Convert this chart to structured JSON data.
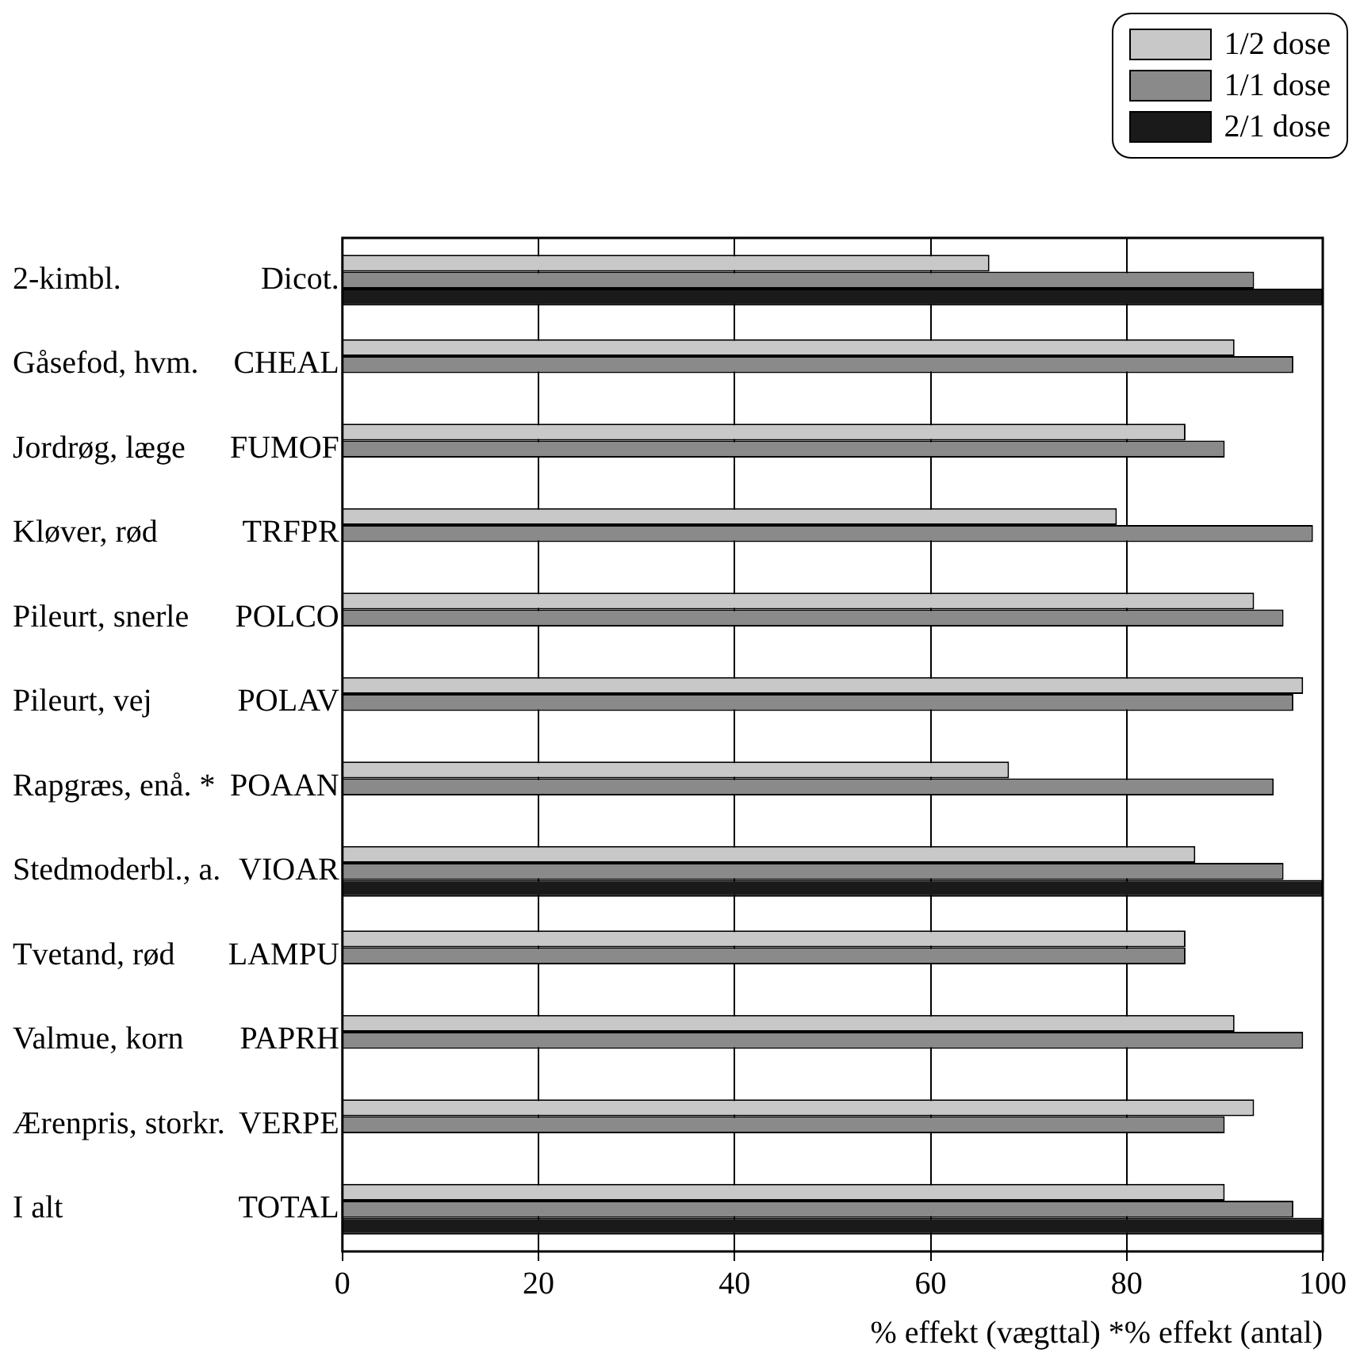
{
  "chart_data": {
    "type": "bar",
    "orientation": "horizontal",
    "categories": [
      "Dicot.",
      "CHEAL",
      "FUMOF",
      "TRFPR",
      "POLCO",
      "POLAV",
      "POAAN",
      "VIOAR",
      "LAMPU",
      "PAPRH",
      "VERPE",
      "TOTAL"
    ],
    "y2_categories": [
      "2-kimbl.",
      "Gåsefod, hvm.",
      "Jordrøg, læge",
      "Kløver, rød",
      "Pileurt, snerle",
      "Pileurt, vej",
      "Rapgræs, enå. *",
      "Stedmoderbl., a.",
      "Tvetand, rød",
      "Valmue, korn",
      "Ærenpris, storkr.",
      "I alt"
    ],
    "series": [
      {
        "name": "1/2 dose",
        "color": "#c8c8c8",
        "values": [
          66,
          91,
          86,
          79,
          93,
          98,
          68,
          87,
          86,
          91,
          93,
          90
        ]
      },
      {
        "name": "1/1 dose",
        "color": "#8a8a8a",
        "values": [
          93,
          97,
          90,
          99,
          96,
          97,
          95,
          96,
          86,
          98,
          90,
          97
        ]
      },
      {
        "name": "2/1 dose",
        "color": "#1a1a1a",
        "values": [
          100,
          null,
          null,
          null,
          null,
          null,
          null,
          100,
          null,
          null,
          null,
          100
        ]
      }
    ],
    "xlim": [
      0,
      100
    ],
    "xticks": [
      0,
      20,
      40,
      60,
      80,
      100
    ],
    "xlabel": "% effekt (vægttal) *% effekt (antal)",
    "grid": "x",
    "legend": "top right"
  }
}
